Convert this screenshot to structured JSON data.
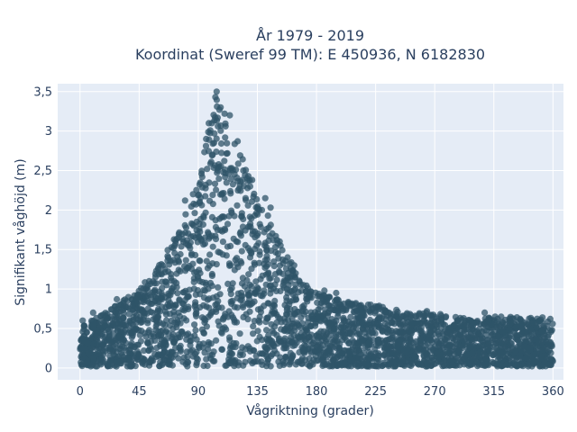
{
  "chart_data": {
    "type": "scatter",
    "title_line1": "År 1979 - 2019",
    "title_line2": "Koordinat (Sweref 99 TM): E 450936, N 6182830",
    "xlabel": "Vågriktning (grader)",
    "ylabel": "Signifikant våghöjd (m)",
    "xlim": [
      -17,
      368
    ],
    "ylim": [
      -0.15,
      3.6
    ],
    "x_ticks": [
      {
        "value": 0,
        "label": "0"
      },
      {
        "value": 45,
        "label": "45"
      },
      {
        "value": 90,
        "label": "90"
      },
      {
        "value": 135,
        "label": "135"
      },
      {
        "value": 180,
        "label": "180"
      },
      {
        "value": 225,
        "label": "225"
      },
      {
        "value": 270,
        "label": "270"
      },
      {
        "value": 315,
        "label": "315"
      },
      {
        "value": 360,
        "label": "360"
      }
    ],
    "y_ticks": [
      {
        "value": 0,
        "label": "0"
      },
      {
        "value": 0.5,
        "label": "0,5"
      },
      {
        "value": 1,
        "label": "1"
      },
      {
        "value": 1.5,
        "label": "1,5"
      },
      {
        "value": 2,
        "label": "2"
      },
      {
        "value": 2.5,
        "label": "2,5"
      },
      {
        "value": 3,
        "label": "3"
      },
      {
        "value": 3.5,
        "label": "3,5"
      }
    ],
    "grid": true,
    "series": [
      {
        "marker_color": "#2f5468",
        "envelope": [
          {
            "x": 0,
            "y": 0.55
          },
          {
            "x": 15,
            "y": 0.65
          },
          {
            "x": 30,
            "y": 0.85
          },
          {
            "x": 45,
            "y": 1.0
          },
          {
            "x": 60,
            "y": 1.3
          },
          {
            "x": 75,
            "y": 1.75
          },
          {
            "x": 90,
            "y": 2.35
          },
          {
            "x": 100,
            "y": 3.2
          },
          {
            "x": 105,
            "y": 3.5
          },
          {
            "x": 112,
            "y": 3.2
          },
          {
            "x": 120,
            "y": 2.8
          },
          {
            "x": 135,
            "y": 2.2
          },
          {
            "x": 150,
            "y": 1.7
          },
          {
            "x": 165,
            "y": 1.2
          },
          {
            "x": 180,
            "y": 0.95
          },
          {
            "x": 200,
            "y": 0.85
          },
          {
            "x": 225,
            "y": 0.8
          },
          {
            "x": 250,
            "y": 0.7
          },
          {
            "x": 270,
            "y": 0.7
          },
          {
            "x": 300,
            "y": 0.6
          },
          {
            "x": 315,
            "y": 0.65
          },
          {
            "x": 340,
            "y": 0.65
          },
          {
            "x": 360,
            "y": 0.6
          }
        ],
        "outliers": [
          {
            "x": 104,
            "y": 3.5
          },
          {
            "x": 103,
            "y": 3.43
          },
          {
            "x": 107,
            "y": 3.3
          },
          {
            "x": 110,
            "y": 3.22
          },
          {
            "x": 114,
            "y": 3.2
          },
          {
            "x": 98,
            "y": 3.1
          },
          {
            "x": 120,
            "y": 2.87
          },
          {
            "x": 96,
            "y": 2.9
          },
          {
            "x": 131,
            "y": 2.38
          },
          {
            "x": 141,
            "y": 2.15
          },
          {
            "x": 145,
            "y": 2.03
          },
          {
            "x": 150,
            "y": 1.62
          },
          {
            "x": 158,
            "y": 1.4
          },
          {
            "x": 163,
            "y": 1.3
          },
          {
            "x": 170,
            "y": 1.05
          },
          {
            "x": 186,
            "y": 0.98
          },
          {
            "x": 195,
            "y": 0.95
          },
          {
            "x": 210,
            "y": 0.82
          },
          {
            "x": 225,
            "y": 0.78
          },
          {
            "x": 264,
            "y": 0.72
          },
          {
            "x": 292,
            "y": 0.63
          },
          {
            "x": 308,
            "y": 0.7
          },
          {
            "x": 316,
            "y": 0.65
          },
          {
            "x": 335,
            "y": 0.62
          },
          {
            "x": 352,
            "y": 0.64
          },
          {
            "x": 358,
            "y": 0.62
          },
          {
            "x": 72,
            "y": 1.55
          },
          {
            "x": 63,
            "y": 1.3
          },
          {
            "x": 50,
            "y": 1.0
          },
          {
            "x": 28,
            "y": 0.87
          },
          {
            "x": 10,
            "y": 0.7
          },
          {
            "x": 2,
            "y": 0.6
          },
          {
            "x": 80,
            "y": 2.12
          },
          {
            "x": 86,
            "y": 2.2
          },
          {
            "x": 126,
            "y": 2.15
          },
          {
            "x": 175,
            "y": 0.9
          }
        ]
      }
    ]
  }
}
